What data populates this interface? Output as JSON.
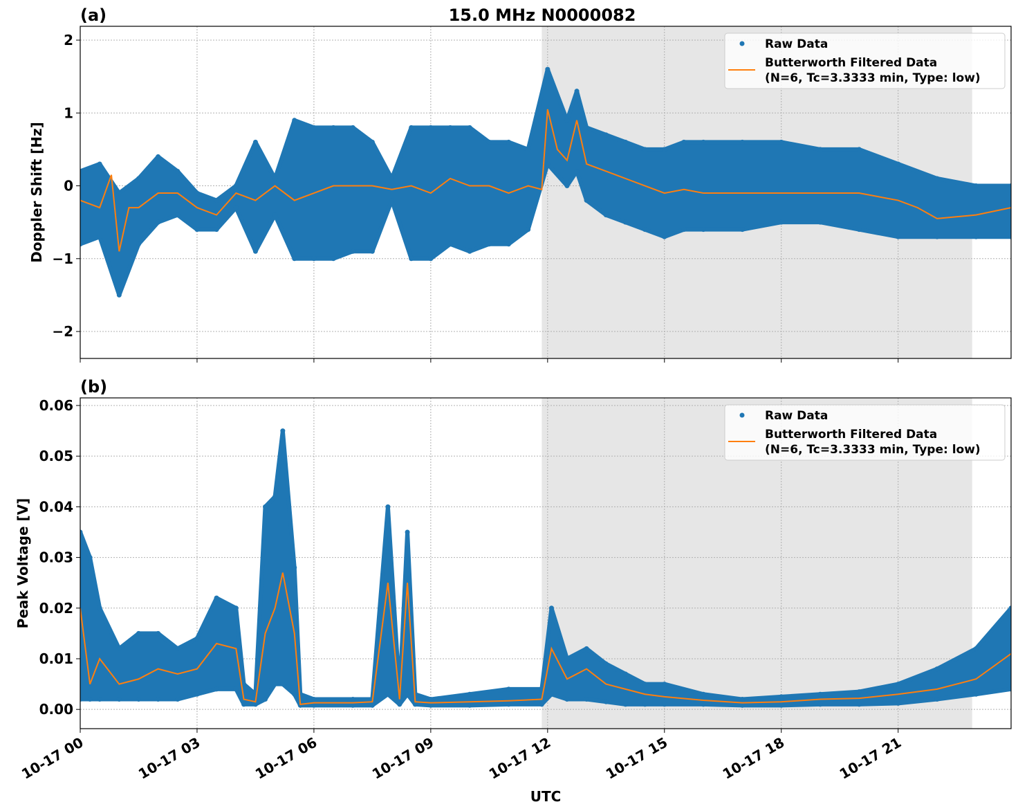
{
  "title": "15.0 MHz N0000082",
  "xlabel": "UTC",
  "x_tick_labels": [
    "10-17 00",
    "10-17 03",
    "10-17 06",
    "10-17 09",
    "10-17 12",
    "10-17 15",
    "10-17 18",
    "10-17 21"
  ],
  "colors": {
    "raw": "#1f77b4",
    "filtered": "#ff7f0e",
    "shade": "#e6e6e6"
  },
  "legend": {
    "raw": "Raw Data",
    "filtered_line1": "Butterworth Filtered Data",
    "filtered_line2": "(N=6, Tc=3.3333 min, Type: low)"
  },
  "chart_data": [
    {
      "type": "scatter",
      "panel_label": "(a)",
      "ylabel": "Doppler Shift [Hz]",
      "xlim_hours_utc": [
        0,
        23.9
      ],
      "ylim": [
        -2.37,
        2.19
      ],
      "y_ticks": [
        -2,
        -1,
        0,
        1,
        2
      ],
      "y_tick_labels": [
        "−2",
        "−1",
        "0",
        "1",
        "2"
      ],
      "grid": true,
      "legend_position": "top-right",
      "shaded_interval_hours_utc": [
        11.85,
        22.9
      ],
      "series": [
        {
          "name": "Raw Data",
          "kind": "scatter-band",
          "t": [
            0,
            0.5,
            1.0,
            1.5,
            2.0,
            2.5,
            3.0,
            3.5,
            4.0,
            4.5,
            5.0,
            5.5,
            6.0,
            6.5,
            7.0,
            7.5,
            8.0,
            8.5,
            9.0,
            9.5,
            10.0,
            10.5,
            11.0,
            11.5,
            12.0,
            12.5,
            12.75,
            13.0,
            13.5,
            14.0,
            14.5,
            15.0,
            15.5,
            16.0,
            17.0,
            18.0,
            19.0,
            20.0,
            21.0,
            22.0,
            23.0,
            23.9
          ],
          "low": [
            -0.8,
            -0.7,
            -1.5,
            -0.8,
            -0.5,
            -0.4,
            -0.6,
            -0.6,
            -0.3,
            -0.9,
            -0.4,
            -1.0,
            -1.0,
            -1.0,
            -0.9,
            -0.9,
            -0.2,
            -1.0,
            -1.0,
            -0.8,
            -0.9,
            -0.8,
            -0.8,
            -0.6,
            0.3,
            0.0,
            0.2,
            -0.2,
            -0.4,
            -0.5,
            -0.6,
            -0.7,
            -0.6,
            -0.6,
            -0.6,
            -0.5,
            -0.5,
            -0.6,
            -0.7,
            -0.7,
            -0.7,
            -0.7
          ],
          "high": [
            0.2,
            0.3,
            -0.1,
            0.1,
            0.4,
            0.2,
            -0.1,
            -0.2,
            0.0,
            0.6,
            0.1,
            0.9,
            0.8,
            0.8,
            0.8,
            0.6,
            0.1,
            0.8,
            0.8,
            0.8,
            0.8,
            0.6,
            0.6,
            0.5,
            1.6,
            0.9,
            1.3,
            0.8,
            0.7,
            0.6,
            0.5,
            0.5,
            0.6,
            0.6,
            0.6,
            0.6,
            0.5,
            0.5,
            0.3,
            0.1,
            0.0,
            0.0
          ]
        },
        {
          "name": "Butterworth Filtered Data (N=6, Tc=3.3333 min, Type: low)",
          "kind": "line",
          "t": [
            0,
            0.5,
            0.8,
            1.0,
            1.25,
            1.5,
            2.0,
            2.5,
            3.0,
            3.5,
            4.0,
            4.5,
            5.0,
            5.5,
            6.0,
            6.5,
            7.0,
            7.5,
            8.0,
            8.5,
            9.0,
            9.5,
            10.0,
            10.5,
            11.0,
            11.5,
            11.85,
            12.0,
            12.25,
            12.5,
            12.75,
            13.0,
            13.5,
            14.0,
            14.5,
            15.0,
            15.5,
            16.0,
            17.0,
            18.0,
            19.0,
            20.0,
            21.0,
            21.5,
            22.0,
            23.0,
            23.9
          ],
          "y": [
            -0.2,
            -0.3,
            0.15,
            -0.9,
            -0.3,
            -0.3,
            -0.1,
            -0.1,
            -0.3,
            -0.4,
            -0.1,
            -0.2,
            0.0,
            -0.2,
            -0.1,
            0.0,
            0.0,
            0.0,
            -0.05,
            0.0,
            -0.1,
            0.1,
            0.0,
            0.0,
            -0.1,
            0.0,
            -0.05,
            1.05,
            0.5,
            0.35,
            0.9,
            0.3,
            0.2,
            0.1,
            0.0,
            -0.1,
            -0.05,
            -0.1,
            -0.1,
            -0.1,
            -0.1,
            -0.1,
            -0.2,
            -0.3,
            -0.45,
            -0.4,
            -0.3
          ]
        }
      ]
    },
    {
      "type": "scatter",
      "panel_label": "(b)",
      "ylabel": "Peak Voltage [V]",
      "xlim_hours_utc": [
        0,
        23.9
      ],
      "ylim": [
        -0.0038,
        0.0615
      ],
      "y_ticks": [
        0,
        0.01,
        0.02,
        0.03,
        0.04,
        0.05,
        0.06
      ],
      "y_tick_labels": [
        "0.00",
        "0.01",
        "0.02",
        "0.03",
        "0.04",
        "0.05",
        "0.06"
      ],
      "grid": true,
      "legend_position": "top-right",
      "shaded_interval_hours_utc": [
        11.85,
        22.9
      ],
      "series": [
        {
          "name": "Raw Data",
          "kind": "scatter-band",
          "t": [
            0,
            0.25,
            0.5,
            1.0,
            1.5,
            2.0,
            2.5,
            3.0,
            3.5,
            4.0,
            4.2,
            4.5,
            4.75,
            5.0,
            5.2,
            5.5,
            5.65,
            6.0,
            7.0,
            7.5,
            7.9,
            8.2,
            8.4,
            8.6,
            9.0,
            10.0,
            11.0,
            11.85,
            12.1,
            12.5,
            13.0,
            13.5,
            14.0,
            14.5,
            15.0,
            16.0,
            17.0,
            18.0,
            19.0,
            20.0,
            21.0,
            22.0,
            23.0,
            23.9
          ],
          "low": [
            0.002,
            0.002,
            0.002,
            0.002,
            0.002,
            0.002,
            0.002,
            0.003,
            0.004,
            0.004,
            0.001,
            0.001,
            0.002,
            0.005,
            0.005,
            0.003,
            0.0008,
            0.0008,
            0.0008,
            0.0008,
            0.003,
            0.001,
            0.003,
            0.001,
            0.0008,
            0.0008,
            0.001,
            0.001,
            0.003,
            0.002,
            0.002,
            0.0015,
            0.001,
            0.001,
            0.001,
            0.001,
            0.0008,
            0.0008,
            0.001,
            0.001,
            0.0012,
            0.002,
            0.003,
            0.004
          ],
          "high": [
            0.035,
            0.03,
            0.02,
            0.012,
            0.015,
            0.015,
            0.012,
            0.014,
            0.022,
            0.02,
            0.005,
            0.003,
            0.04,
            0.042,
            0.055,
            0.028,
            0.003,
            0.002,
            0.002,
            0.002,
            0.04,
            0.003,
            0.035,
            0.003,
            0.002,
            0.003,
            0.004,
            0.004,
            0.02,
            0.01,
            0.012,
            0.009,
            0.007,
            0.005,
            0.005,
            0.003,
            0.002,
            0.0025,
            0.003,
            0.0035,
            0.005,
            0.008,
            0.012,
            0.02
          ]
        },
        {
          "name": "Butterworth Filtered Data (N=6, Tc=3.3333 min, Type: low)",
          "kind": "line",
          "t": [
            0,
            0.25,
            0.5,
            1.0,
            1.5,
            2.0,
            2.5,
            3.0,
            3.5,
            4.0,
            4.2,
            4.5,
            4.75,
            5.0,
            5.2,
            5.5,
            5.65,
            6.0,
            7.0,
            7.5,
            7.9,
            8.2,
            8.4,
            8.6,
            9.0,
            10.0,
            11.0,
            11.85,
            12.1,
            12.5,
            13.0,
            13.5,
            14.0,
            14.5,
            15.0,
            16.0,
            17.0,
            18.0,
            19.0,
            20.0,
            21.0,
            22.0,
            23.0,
            23.9
          ],
          "y": [
            0.02,
            0.005,
            0.01,
            0.005,
            0.006,
            0.008,
            0.007,
            0.008,
            0.013,
            0.012,
            0.002,
            0.0015,
            0.015,
            0.02,
            0.027,
            0.015,
            0.001,
            0.0013,
            0.0013,
            0.0015,
            0.025,
            0.002,
            0.025,
            0.0015,
            0.0013,
            0.0015,
            0.0017,
            0.002,
            0.012,
            0.006,
            0.008,
            0.005,
            0.004,
            0.003,
            0.0025,
            0.0018,
            0.0013,
            0.0015,
            0.002,
            0.0022,
            0.003,
            0.004,
            0.006,
            0.011
          ]
        }
      ]
    }
  ]
}
